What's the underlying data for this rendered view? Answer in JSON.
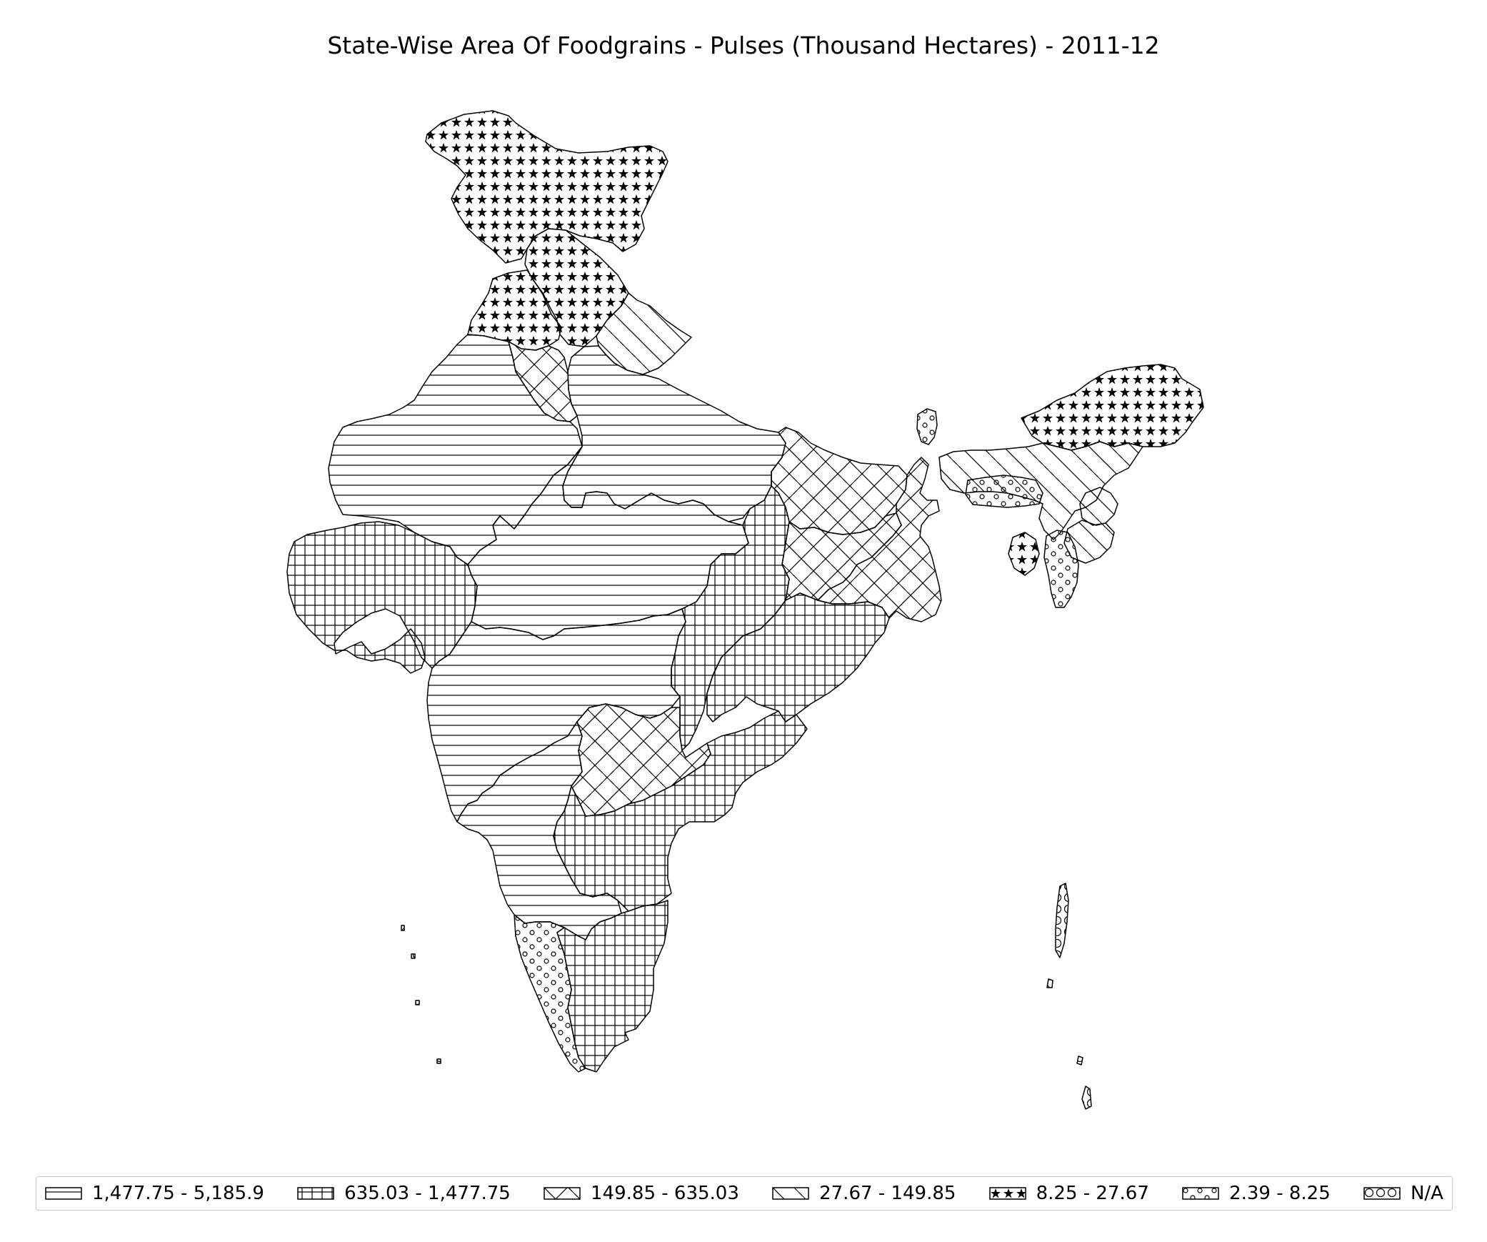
{
  "title": "State-Wise Area Of Foodgrains - Pulses (Thousand Hectares) - 2011-12",
  "legend": [
    {
      "label": "1,477.75 - 5,185.9",
      "pattern": "horizontal-lines"
    },
    {
      "label": "635.03 - 1,477.75",
      "pattern": "grid-lines"
    },
    {
      "label": "149.85 - 635.03",
      "pattern": "cross-hatch"
    },
    {
      "label": "27.67 - 149.85",
      "pattern": "diagonal-lines"
    },
    {
      "label": "8.25 - 27.67",
      "pattern": "stars"
    },
    {
      "label": "2.39 - 8.25",
      "pattern": "small-circles"
    },
    {
      "label": "N/A",
      "pattern": "large-circles"
    }
  ],
  "regions": [
    {
      "name": "jammu-kashmir",
      "class": 4
    },
    {
      "name": "himachal-pradesh",
      "class": 4
    },
    {
      "name": "punjab",
      "class": 4
    },
    {
      "name": "uttarakhand",
      "class": 3
    },
    {
      "name": "haryana",
      "class": 2
    },
    {
      "name": "rajasthan",
      "class": 0
    },
    {
      "name": "uttar-pradesh",
      "class": 0
    },
    {
      "name": "madhya-pradesh",
      "class": 0
    },
    {
      "name": "gujarat",
      "class": 1
    },
    {
      "name": "maharashtra",
      "class": 0
    },
    {
      "name": "karnataka",
      "class": 0
    },
    {
      "name": "chhattisgarh",
      "class": 1
    },
    {
      "name": "odisha",
      "class": 1
    },
    {
      "name": "andhra-pradesh",
      "class": 1
    },
    {
      "name": "telangana",
      "class": 2
    },
    {
      "name": "tamil-nadu",
      "class": 1
    },
    {
      "name": "kerala",
      "class": 5
    },
    {
      "name": "bihar",
      "class": 2
    },
    {
      "name": "jharkhand",
      "class": 2
    },
    {
      "name": "west-bengal",
      "class": 2
    },
    {
      "name": "sikkim",
      "class": 5
    },
    {
      "name": "arunachal-pradesh",
      "class": 4
    },
    {
      "name": "assam",
      "class": 3
    },
    {
      "name": "meghalaya",
      "class": 5
    },
    {
      "name": "nagaland",
      "class": 3
    },
    {
      "name": "manipur",
      "class": 3
    },
    {
      "name": "mizoram",
      "class": 5
    },
    {
      "name": "tripura",
      "class": 4
    },
    {
      "name": "andaman-nicobar",
      "class": 6
    },
    {
      "name": "lakshadweep",
      "class": 6
    }
  ]
}
